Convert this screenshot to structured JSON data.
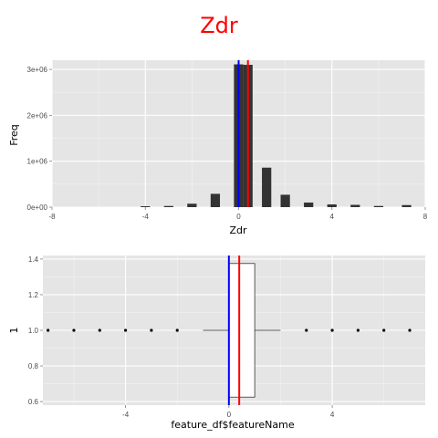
{
  "title": "Zdr",
  "colors": {
    "panel_bg": "#e5e5e5",
    "grid_major": "#ffffff",
    "grid_minor": "#f2f2f2",
    "bar_fill": "#333333",
    "blue_line": "#0000ff",
    "red_line": "#ff0000",
    "title": "#ff0000"
  },
  "chart_data": [
    {
      "type": "bar",
      "subtype": "histogram",
      "xlabel": "Zdr",
      "ylabel": "Freq",
      "xlim": [
        -8,
        8
      ],
      "ylim": [
        0,
        3200000
      ],
      "x_ticks": [
        -8,
        -4,
        0,
        4,
        8
      ],
      "x_tick_labels": [
        "-8",
        "-4",
        "0",
        "4",
        "8"
      ],
      "y_ticks": [
        0,
        1000000,
        2000000,
        3000000
      ],
      "y_tick_labels": [
        "0e+00",
        "1e+06",
        "2e+06",
        "3e+06"
      ],
      "bin_width": 0.4,
      "bin_centers": [
        -4,
        -3,
        -2,
        -1,
        0,
        0.4,
        1.2,
        2,
        3,
        4,
        5,
        6,
        7.2
      ],
      "values": [
        20000,
        25000,
        75000,
        290000,
        3110000,
        3100000,
        860000,
        270000,
        100000,
        60000,
        50000,
        25000,
        45000
      ],
      "vlines": [
        {
          "x": 0,
          "color": "blue"
        },
        {
          "x": 0.4,
          "color": "red"
        }
      ],
      "grid": true
    },
    {
      "type": "boxplot",
      "xlabel": "feature_df$featureName",
      "ylabel": "1",
      "xlim": [
        -7.2,
        7.6
      ],
      "ylim": [
        0.58,
        1.42
      ],
      "x_ticks": [
        -4,
        0,
        4
      ],
      "x_tick_labels": [
        "-4",
        "0",
        "4"
      ],
      "y_ticks": [
        0.6,
        0.8,
        1.0,
        1.2,
        1.4
      ],
      "y_tick_labels": [
        "0.6",
        "0.8",
        "1.0",
        "1.2",
        "1.4"
      ],
      "box": {
        "lower_whisker": -1,
        "q1": 0,
        "median": 0,
        "q3": 1,
        "upper_whisker": 2,
        "y_low": 0.625,
        "y_high": 1.375,
        "y_center": 1.0
      },
      "outliers": [
        -7,
        -6,
        -5,
        -4,
        -3,
        -2,
        3,
        4,
        5,
        6,
        7
      ],
      "vlines": [
        {
          "x": 0,
          "color": "blue"
        },
        {
          "x": 0.4,
          "color": "red"
        }
      ],
      "grid": true
    }
  ]
}
